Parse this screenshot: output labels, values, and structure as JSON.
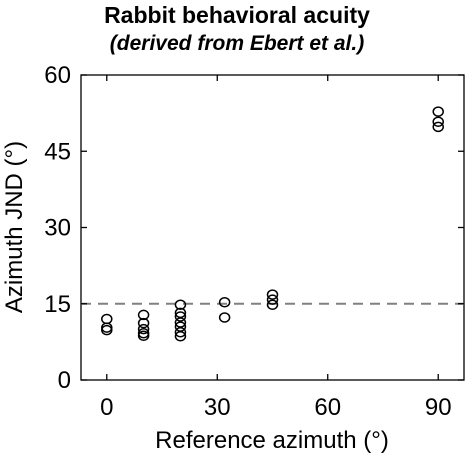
{
  "chart_data": {
    "type": "scatter",
    "title": "Rabbit behavioral acuity",
    "subtitle": "(derived from Ebert et al.)",
    "xlabel": "Reference azimuth (°)",
    "ylabel": "Azimuth JND (°)",
    "xlim": [
      -7,
      97
    ],
    "ylim": [
      0,
      60
    ],
    "xticks": [
      0,
      30,
      60,
      90
    ],
    "yticks": [
      0,
      15,
      30,
      45,
      60
    ],
    "grid": false,
    "marker": "open-circle",
    "marker_color": "#000000",
    "reference_line": {
      "y": 15,
      "style": "dashed",
      "color": "#808080"
    },
    "points": [
      {
        "x": 0,
        "y": 12
      },
      {
        "x": 0,
        "y": 10.3
      },
      {
        "x": 0,
        "y": 9.8
      },
      {
        "x": 10,
        "y": 12.8
      },
      {
        "x": 10,
        "y": 11.2
      },
      {
        "x": 10,
        "y": 10
      },
      {
        "x": 10,
        "y": 9.2
      },
      {
        "x": 10,
        "y": 8.7
      },
      {
        "x": 20,
        "y": 14.8
      },
      {
        "x": 20,
        "y": 13.2
      },
      {
        "x": 20,
        "y": 12.5
      },
      {
        "x": 20,
        "y": 11.3
      },
      {
        "x": 20,
        "y": 10.5
      },
      {
        "x": 20,
        "y": 9.4
      },
      {
        "x": 20,
        "y": 8.6
      },
      {
        "x": 32,
        "y": 15.3
      },
      {
        "x": 32,
        "y": 12.3
      },
      {
        "x": 45,
        "y": 16.8
      },
      {
        "x": 45,
        "y": 15.8
      },
      {
        "x": 45,
        "y": 14.8
      },
      {
        "x": 90,
        "y": 52.8
      },
      {
        "x": 90,
        "y": 50.8
      },
      {
        "x": 90,
        "y": 49.8
      }
    ]
  }
}
